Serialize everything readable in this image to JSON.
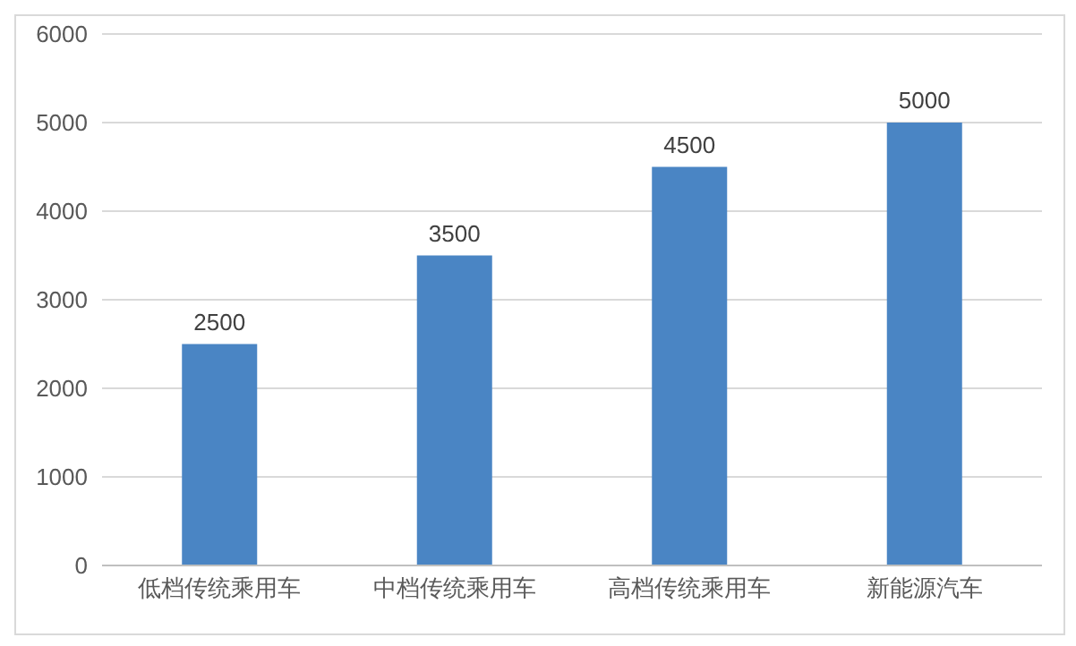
{
  "chart_data": {
    "type": "bar",
    "categories": [
      "低档传统乘用车",
      "中档传统乘用车",
      "高档传统乘用车",
      "新能源汽车"
    ],
    "values": [
      2500,
      3500,
      4500,
      5000
    ],
    "color": "#4a85c4",
    "ylim": [
      0,
      6000
    ],
    "yticks": [
      0,
      1000,
      2000,
      3000,
      4000,
      5000,
      6000
    ],
    "grid": "y",
    "data_labels": true
  }
}
